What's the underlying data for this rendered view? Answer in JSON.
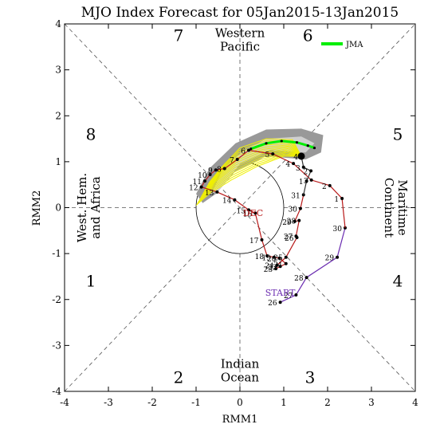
{
  "chart_data": {
    "type": "scatter",
    "title": "MJO Index Forecast for 05Jan2015-13Jan2015",
    "xlabel": "RMM1",
    "ylabel": "RMM2",
    "xlim": [
      -4,
      4
    ],
    "ylim": [
      -4,
      4
    ],
    "x_ticks": [
      "-4",
      "-3",
      "-2",
      "-1",
      "0",
      "1",
      "2",
      "3",
      "4"
    ],
    "y_ticks": [
      "-4",
      "-3",
      "-2",
      "-1",
      "0",
      "1",
      "2",
      "3",
      "4"
    ],
    "grid": false,
    "legend_position": "top-right",
    "legend": [
      {
        "name": "JMA",
        "color": "#00ee00"
      }
    ],
    "colors": {
      "observed_nov": "#6a2bb0",
      "observed_dec": "#b81818",
      "observed_jan": "#333333",
      "ensemble": "#f0f000",
      "spread_dark": "#999999",
      "spread_light": "#d0d0d0",
      "forecast": "#00ee00"
    },
    "phase_labels": [
      {
        "text": "1",
        "x": -3.4,
        "y": -1.6
      },
      {
        "text": "2",
        "x": -1.4,
        "y": -3.7
      },
      {
        "text": "3",
        "x": 1.6,
        "y": -3.7
      },
      {
        "text": "4",
        "x": 3.6,
        "y": -1.6
      },
      {
        "text": "5",
        "x": 3.6,
        "y": 1.6
      },
      {
        "text": "6",
        "x": 1.55,
        "y": 3.75
      },
      {
        "text": "7",
        "x": -1.4,
        "y": 3.75
      },
      {
        "text": "8",
        "x": -3.4,
        "y": 1.6
      }
    ],
    "region_labels": [
      {
        "lines": [
          "Western",
          "Pacific"
        ],
        "x": 0,
        "y": 3.65,
        "rotate": 0
      },
      {
        "lines": [
          "Indian",
          "Ocean"
        ],
        "x": 0,
        "y": -3.55,
        "rotate": 0
      },
      {
        "lines": [
          "West. Hem.",
          "and Africa"
        ],
        "x": -3.45,
        "y": 0,
        "rotate": -90
      },
      {
        "lines": [
          "Maritime",
          "Continent"
        ],
        "x": 3.55,
        "y": 0,
        "rotate": 90
      }
    ],
    "month_labels": [
      {
        "text": "START",
        "x": 0.92,
        "y": -1.92,
        "color": "#6a2bb0"
      },
      {
        "text": "DEC",
        "x": 0.3,
        "y": -0.18,
        "color": "#b81818"
      }
    ],
    "series": [
      {
        "name": "Nov",
        "color": "#6a2bb0",
        "points": [
          {
            "label": "26",
            "x": 0.92,
            "y": -2.06
          },
          {
            "label": "27",
            "x": 1.28,
            "y": -1.9
          },
          {
            "label": "28",
            "x": 1.52,
            "y": -1.52
          },
          {
            "label": "29",
            "x": 2.22,
            "y": -1.08
          },
          {
            "label": "30",
            "x": 2.4,
            "y": -0.44
          }
        ]
      },
      {
        "name": "Dec",
        "color": "#b81818",
        "points": [
          {
            "label": "1",
            "x": 2.33,
            "y": 0.2
          },
          {
            "label": "2",
            "x": 2.05,
            "y": 0.48
          },
          {
            "label": "3",
            "x": 1.63,
            "y": 0.6
          },
          {
            "label": "4",
            "x": 1.22,
            "y": 0.96
          },
          {
            "label": "5",
            "x": 0.75,
            "y": 1.17
          },
          {
            "label": "6",
            "x": 0.2,
            "y": 1.25
          },
          {
            "label": "7",
            "x": -0.06,
            "y": 1.05
          },
          {
            "label": "8",
            "x": -0.35,
            "y": 0.85
          },
          {
            "label": "9",
            "x": -0.55,
            "y": 0.82
          },
          {
            "label": "10",
            "x": -0.68,
            "y": 0.72
          },
          {
            "label": "11",
            "x": -0.8,
            "y": 0.58
          },
          {
            "label": "12",
            "x": -0.88,
            "y": 0.45
          },
          {
            "label": "13",
            "x": -0.52,
            "y": 0.34
          },
          {
            "label": "14",
            "x": -0.12,
            "y": 0.17
          },
          {
            "label": "15",
            "x": 0.2,
            "y": -0.05
          },
          {
            "label": "16",
            "x": 0.35,
            "y": -0.12
          },
          {
            "label": "17",
            "x": 0.5,
            "y": -0.7
          },
          {
            "label": "18",
            "x": 0.62,
            "y": -1.05
          },
          {
            "label": "19",
            "x": 0.78,
            "y": -1.08
          },
          {
            "label": "20",
            "x": 0.9,
            "y": -1.1
          },
          {
            "label": "21",
            "x": 1.05,
            "y": -1.22
          },
          {
            "label": "22",
            "x": 0.92,
            "y": -1.28
          },
          {
            "label": "23",
            "x": 0.82,
            "y": -1.33
          },
          {
            "label": "24",
            "x": 0.85,
            "y": -1.25
          },
          {
            "label": "25",
            "x": 1.05,
            "y": -1.08
          },
          {
            "label": "26",
            "x": 1.3,
            "y": -0.65
          },
          {
            "label": "27",
            "x": 1.28,
            "y": -0.62
          },
          {
            "label": "28",
            "x": 1.35,
            "y": -0.28
          },
          {
            "label": "29",
            "x": 1.25,
            "y": -0.3
          },
          {
            "label": "30",
            "x": 1.38,
            "y": -0.02
          },
          {
            "label": "31",
            "x": 1.45,
            "y": 0.28
          }
        ]
      },
      {
        "name": "Jan",
        "color": "#333333",
        "points": [
          {
            "label": "1",
            "x": 1.52,
            "y": 0.58
          },
          {
            "label": "2",
            "x": 1.62,
            "y": 0.8
          },
          {
            "label": "3",
            "x": 1.45,
            "y": 0.88
          },
          {
            "label": "4",
            "x": 1.4,
            "y": 1.12
          }
        ]
      },
      {
        "name": "JMA",
        "color": "#00ee00",
        "points": [
          {
            "label": "",
            "x": 0.25,
            "y": 1.28
          },
          {
            "label": "",
            "x": 0.6,
            "y": 1.4
          },
          {
            "label": "",
            "x": 0.95,
            "y": 1.45
          },
          {
            "label": "",
            "x": 1.3,
            "y": 1.42
          },
          {
            "label": "",
            "x": 1.55,
            "y": 1.35
          },
          {
            "label": "",
            "x": 1.7,
            "y": 1.3
          }
        ]
      }
    ]
  }
}
